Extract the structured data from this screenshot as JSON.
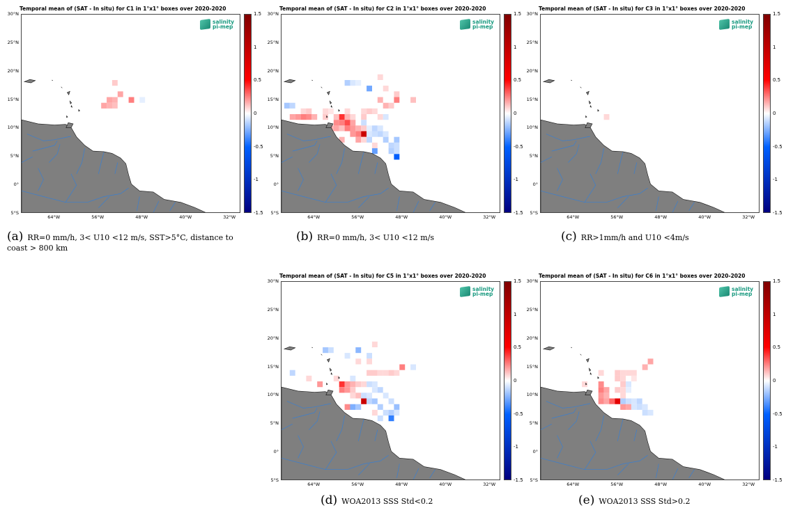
{
  "colors": {
    "land": "#7f7f7f",
    "river": "#3a7fd0",
    "frame": "#444444"
  },
  "logo": {
    "line1": "salinity",
    "line2": "pi-mep"
  },
  "lat_ticks": [
    "30°N",
    "25°N",
    "20°N",
    "15°N",
    "10°N",
    "5°N",
    "0°",
    "5°S"
  ],
  "lon_ticks": [
    "64°W",
    "56°W",
    "48°W",
    "40°W",
    "32°W"
  ],
  "colorbar_ticks": [
    "1.5",
    "1",
    "0.5",
    "0",
    "-0.5",
    "-1",
    "-1.5"
  ],
  "panels": [
    {
      "title": "Temporal mean of (SAT - In situ) for C1 in 1°x1° boxes over 2020-2020",
      "letter": "(a)",
      "caption": "RR=0 mm/h, 3< U10 <12 m/s, SST>5°C, distance to coast > 800 km"
    },
    {
      "title": "Temporal mean of (SAT - In situ) for C2 in 1°x1° boxes over 2020-2020",
      "letter": "(b)",
      "caption": "RR=0 mm/h, 3< U10 <12 m/s"
    },
    {
      "title": "Temporal mean of (SAT - In situ) for C3 in 1°x1° boxes over 2020-2020",
      "letter": "(c)",
      "caption": "RR>1mm/h and U10 <4m/s"
    },
    {
      "title": "Temporal mean of (SAT - In situ) for C5 in 1°x1° boxes over 2020-2020",
      "letter": "(d)",
      "caption": "WOA2013 SSS Std<0.2"
    },
    {
      "title": "Temporal mean of (SAT - In situ) for C6 in 1°x1° boxes over 2020-2020",
      "letter": "(e)",
      "caption": "WOA2013 SSS Std>0.2"
    }
  ],
  "chart_data": [
    {
      "type": "heatmap",
      "title": "Temporal mean of (SAT - In situ) for C1 in 1°x1° boxes over 2020-2020",
      "lon_range": [
        -70,
        -30
      ],
      "lat_range": [
        -5,
        30
      ],
      "clim": [
        -1.5,
        1.5
      ],
      "cells": [
        [
          -53,
          18,
          0.2
        ],
        [
          -52,
          16,
          0.35
        ],
        [
          -53,
          15,
          0.3
        ],
        [
          -54,
          15,
          0.35
        ],
        [
          -55,
          14,
          0.35
        ],
        [
          -54,
          14,
          0.3
        ],
        [
          -53,
          14,
          0.25
        ],
        [
          -50,
          15,
          0.5
        ],
        [
          -48,
          15,
          -0.1
        ]
      ]
    },
    {
      "type": "heatmap",
      "title": "Temporal mean of (SAT - In situ) for C2 in 1°x1° boxes over 2020-2020",
      "lon_range": [
        -70,
        -30
      ],
      "lat_range": [
        -5,
        30
      ],
      "clim": [
        -1.5,
        1.5
      ],
      "cells": [
        [
          -58,
          18,
          -0.3
        ],
        [
          -57,
          18,
          -0.15
        ],
        [
          -56,
          18,
          -0.1
        ],
        [
          -52,
          19,
          0.15
        ],
        [
          -54,
          17,
          -0.55
        ],
        [
          -51,
          17,
          0.15
        ],
        [
          -49,
          16,
          0.2
        ],
        [
          -69,
          14,
          -0.35
        ],
        [
          -68,
          14,
          -0.25
        ],
        [
          -52,
          15,
          0.3
        ],
        [
          -49,
          15,
          0.5
        ],
        [
          -46,
          15,
          0.25
        ],
        [
          -50,
          14,
          0.2
        ],
        [
          -51,
          14,
          0.3
        ],
        [
          -66,
          13,
          0.15
        ],
        [
          -65,
          13,
          0.2
        ],
        [
          -62,
          13,
          0.15
        ],
        [
          -61,
          13,
          0.1
        ],
        [
          -58,
          13,
          0.15
        ],
        [
          -55,
          13,
          0.15
        ],
        [
          -54,
          13,
          0.2
        ],
        [
          -53,
          13,
          0.15
        ],
        [
          -68,
          12,
          0.35
        ],
        [
          -67,
          12,
          0.4
        ],
        [
          -66,
          12,
          0.5
        ],
        [
          -65,
          12,
          0.45
        ],
        [
          -64,
          12,
          0.3
        ],
        [
          -62,
          12,
          0.2
        ],
        [
          -60,
          12,
          0.25
        ],
        [
          -59,
          12,
          0.8
        ],
        [
          -58,
          12,
          0.3
        ],
        [
          -57,
          12,
          0.15
        ],
        [
          -55,
          12,
          0.2
        ],
        [
          -52,
          12,
          0.15
        ],
        [
          -51,
          12,
          -0.15
        ],
        [
          -60,
          11,
          0.45
        ],
        [
          -59,
          11,
          0.5
        ],
        [
          -58,
          11,
          0.7
        ],
        [
          -57,
          11,
          0.35
        ],
        [
          -55,
          11,
          -0.2
        ],
        [
          -61,
          10,
          0.3
        ],
        [
          -60,
          10,
          0.35
        ],
        [
          -59,
          10,
          0.25
        ],
        [
          -58,
          10,
          0.5
        ],
        [
          -57,
          10,
          0.4
        ],
        [
          -56,
          10,
          0.3
        ],
        [
          -55,
          10,
          0.2
        ],
        [
          -54,
          10,
          -0.1
        ],
        [
          -53,
          10,
          -0.25
        ],
        [
          -52,
          10,
          -0.15
        ],
        [
          -57,
          9,
          0.4
        ],
        [
          -56,
          9,
          0.5
        ],
        [
          -55,
          9,
          1.2
        ],
        [
          -54,
          9,
          -0.15
        ],
        [
          -53,
          9,
          -0.2
        ],
        [
          -52,
          9,
          -0.25
        ],
        [
          -51,
          9,
          -0.15
        ],
        [
          -59,
          8,
          0.3
        ],
        [
          -56,
          8,
          0.35
        ],
        [
          -55,
          8,
          0.15
        ],
        [
          -54,
          8,
          -0.25
        ],
        [
          -51,
          8,
          -0.3
        ],
        [
          -49,
          8,
          -0.35
        ],
        [
          -53,
          7,
          0.15
        ],
        [
          -50,
          7,
          -0.25
        ],
        [
          -49,
          7,
          -0.2
        ],
        [
          -53,
          6,
          -0.6
        ],
        [
          -50,
          6,
          -0.3
        ],
        [
          -49,
          5,
          -1.0
        ],
        [
          -49,
          6,
          -0.2
        ]
      ]
    },
    {
      "type": "heatmap",
      "title": "Temporal mean of (SAT - In situ) for C3 in 1°x1° boxes over 2020-2020",
      "lon_range": [
        -70,
        -30
      ],
      "lat_range": [
        -5,
        30
      ],
      "clim": [
        -1.5,
        1.5
      ],
      "cells": [
        [
          -58,
          12,
          0.15
        ]
      ]
    },
    {
      "type": "heatmap",
      "title": "Temporal mean of (SAT - In situ) for C5 in 1°x1° boxes over 2020-2020",
      "lon_range": [
        -70,
        -30
      ],
      "lat_range": [
        -5,
        30
      ],
      "clim": [
        -1.5,
        1.5
      ],
      "cells": [
        [
          -62,
          18,
          -0.35
        ],
        [
          -61,
          18,
          -0.2
        ],
        [
          -56,
          18,
          -0.45
        ],
        [
          -53,
          19,
          0.15
        ],
        [
          -58,
          17,
          -0.15
        ],
        [
          -54,
          17,
          -0.2
        ],
        [
          -56,
          16,
          0.15
        ],
        [
          -54,
          16,
          0.15
        ],
        [
          -48,
          15,
          0.5
        ],
        [
          -46,
          15,
          -0.15
        ],
        [
          -68,
          14,
          -0.25
        ],
        [
          -54,
          14,
          0.2
        ],
        [
          -53,
          14,
          0.2
        ],
        [
          -52,
          14,
          0.15
        ],
        [
          -51,
          14,
          0.15
        ],
        [
          -50,
          14,
          0.2
        ],
        [
          -49,
          14,
          0.15
        ],
        [
          -65,
          13,
          0.15
        ],
        [
          -60,
          13,
          0.15
        ],
        [
          -57,
          13,
          -0.15
        ],
        [
          -63,
          12,
          0.4
        ],
        [
          -59,
          12,
          0.8
        ],
        [
          -58,
          12,
          0.4
        ],
        [
          -57,
          12,
          0.3
        ],
        [
          -56,
          12,
          0.2
        ],
        [
          -55,
          12,
          0.15
        ],
        [
          -54,
          12,
          -0.2
        ],
        [
          -53,
          12,
          -0.15
        ],
        [
          -59,
          11,
          0.5
        ],
        [
          -58,
          11,
          0.4
        ],
        [
          -57,
          11,
          0.2
        ],
        [
          -53,
          11,
          -0.15
        ],
        [
          -52,
          11,
          -0.25
        ],
        [
          -57,
          10,
          0.15
        ],
        [
          -56,
          10,
          0.25
        ],
        [
          -55,
          10,
          -0.2
        ],
        [
          -54,
          10,
          -0.15
        ],
        [
          -51,
          10,
          -0.15
        ],
        [
          -55,
          9,
          1.2
        ],
        [
          -54,
          9,
          -0.25
        ],
        [
          -53,
          9,
          -0.35
        ],
        [
          -50,
          9,
          -0.2
        ],
        [
          -58,
          8,
          0.45
        ],
        [
          -57,
          8,
          -0.5
        ],
        [
          -56,
          8,
          -0.35
        ],
        [
          -52,
          8,
          -0.3
        ],
        [
          -49,
          8,
          -0.4
        ],
        [
          -53,
          7,
          0.15
        ],
        [
          -51,
          7,
          -0.2
        ],
        [
          -50,
          7,
          -0.3
        ],
        [
          -49,
          7,
          -0.15
        ],
        [
          -50,
          6,
          -0.8
        ],
        [
          -52,
          6,
          -0.2
        ]
      ]
    },
    {
      "type": "heatmap",
      "title": "Temporal mean of (SAT - In situ) for C6 in 1°x1° boxes over 2020-2020",
      "lon_range": [
        -70,
        -30
      ],
      "lat_range": [
        -5,
        30
      ],
      "clim": [
        -1.5,
        1.5
      ],
      "cells": [
        [
          -50,
          16,
          0.35
        ],
        [
          -51,
          15,
          0.3
        ],
        [
          -59,
          14,
          0.15
        ],
        [
          -56,
          14,
          0.2
        ],
        [
          -55,
          14,
          0.15
        ],
        [
          -54,
          14,
          0.15
        ],
        [
          -53,
          14,
          0.15
        ],
        [
          -56,
          13,
          0.2
        ],
        [
          -55,
          13,
          0.15
        ],
        [
          -53,
          13,
          0.1
        ],
        [
          -59,
          12,
          0.45
        ],
        [
          -55,
          12,
          0.2
        ],
        [
          -54,
          12,
          -0.15
        ],
        [
          -62,
          12,
          0.15
        ],
        [
          -59,
          11,
          0.5
        ],
        [
          -58,
          11,
          0.35
        ],
        [
          -56,
          11,
          0.2
        ],
        [
          -55,
          11,
          0.15
        ],
        [
          -54,
          11,
          -0.1
        ],
        [
          -59,
          10,
          0.4
        ],
        [
          -58,
          10,
          0.3
        ],
        [
          -55,
          10,
          0.15
        ],
        [
          -59,
          9,
          0.45
        ],
        [
          -58,
          9,
          0.35
        ],
        [
          -57,
          9,
          0.6
        ],
        [
          -56,
          9,
          1.1
        ],
        [
          -55,
          9,
          -0.3
        ],
        [
          -54,
          9,
          -0.2
        ],
        [
          -53,
          9,
          -0.15
        ],
        [
          -52,
          9,
          -0.25
        ],
        [
          -55,
          8,
          0.4
        ],
        [
          -54,
          8,
          0.35
        ],
        [
          -53,
          8,
          -0.15
        ],
        [
          -52,
          8,
          -0.2
        ],
        [
          -51,
          8,
          -0.15
        ],
        [
          -51,
          7,
          -0.2
        ],
        [
          -50,
          7,
          -0.15
        ]
      ]
    }
  ]
}
